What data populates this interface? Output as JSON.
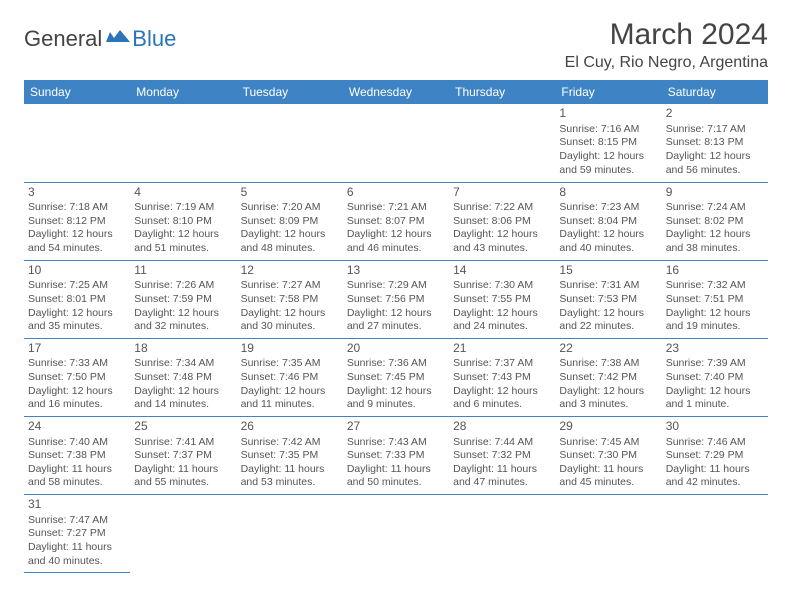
{
  "brand": {
    "part1": "General",
    "part2": "Blue",
    "flag_color": "#2a74b8"
  },
  "title": "March 2024",
  "location": "El Cuy, Rio Negro, Argentina",
  "header_bg": "#3e84c4",
  "day_headers": [
    "Sunday",
    "Monday",
    "Tuesday",
    "Wednesday",
    "Thursday",
    "Friday",
    "Saturday"
  ],
  "weeks": [
    [
      null,
      null,
      null,
      null,
      null,
      {
        "n": "1",
        "sr": "7:16 AM",
        "ss": "8:15 PM",
        "dl": "12 hours and 59 minutes."
      },
      {
        "n": "2",
        "sr": "7:17 AM",
        "ss": "8:13 PM",
        "dl": "12 hours and 56 minutes."
      }
    ],
    [
      {
        "n": "3",
        "sr": "7:18 AM",
        "ss": "8:12 PM",
        "dl": "12 hours and 54 minutes."
      },
      {
        "n": "4",
        "sr": "7:19 AM",
        "ss": "8:10 PM",
        "dl": "12 hours and 51 minutes."
      },
      {
        "n": "5",
        "sr": "7:20 AM",
        "ss": "8:09 PM",
        "dl": "12 hours and 48 minutes."
      },
      {
        "n": "6",
        "sr": "7:21 AM",
        "ss": "8:07 PM",
        "dl": "12 hours and 46 minutes."
      },
      {
        "n": "7",
        "sr": "7:22 AM",
        "ss": "8:06 PM",
        "dl": "12 hours and 43 minutes."
      },
      {
        "n": "8",
        "sr": "7:23 AM",
        "ss": "8:04 PM",
        "dl": "12 hours and 40 minutes."
      },
      {
        "n": "9",
        "sr": "7:24 AM",
        "ss": "8:02 PM",
        "dl": "12 hours and 38 minutes."
      }
    ],
    [
      {
        "n": "10",
        "sr": "7:25 AM",
        "ss": "8:01 PM",
        "dl": "12 hours and 35 minutes."
      },
      {
        "n": "11",
        "sr": "7:26 AM",
        "ss": "7:59 PM",
        "dl": "12 hours and 32 minutes."
      },
      {
        "n": "12",
        "sr": "7:27 AM",
        "ss": "7:58 PM",
        "dl": "12 hours and 30 minutes."
      },
      {
        "n": "13",
        "sr": "7:29 AM",
        "ss": "7:56 PM",
        "dl": "12 hours and 27 minutes."
      },
      {
        "n": "14",
        "sr": "7:30 AM",
        "ss": "7:55 PM",
        "dl": "12 hours and 24 minutes."
      },
      {
        "n": "15",
        "sr": "7:31 AM",
        "ss": "7:53 PM",
        "dl": "12 hours and 22 minutes."
      },
      {
        "n": "16",
        "sr": "7:32 AM",
        "ss": "7:51 PM",
        "dl": "12 hours and 19 minutes."
      }
    ],
    [
      {
        "n": "17",
        "sr": "7:33 AM",
        "ss": "7:50 PM",
        "dl": "12 hours and 16 minutes."
      },
      {
        "n": "18",
        "sr": "7:34 AM",
        "ss": "7:48 PM",
        "dl": "12 hours and 14 minutes."
      },
      {
        "n": "19",
        "sr": "7:35 AM",
        "ss": "7:46 PM",
        "dl": "12 hours and 11 minutes."
      },
      {
        "n": "20",
        "sr": "7:36 AM",
        "ss": "7:45 PM",
        "dl": "12 hours and 9 minutes."
      },
      {
        "n": "21",
        "sr": "7:37 AM",
        "ss": "7:43 PM",
        "dl": "12 hours and 6 minutes."
      },
      {
        "n": "22",
        "sr": "7:38 AM",
        "ss": "7:42 PM",
        "dl": "12 hours and 3 minutes."
      },
      {
        "n": "23",
        "sr": "7:39 AM",
        "ss": "7:40 PM",
        "dl": "12 hours and 1 minute."
      }
    ],
    [
      {
        "n": "24",
        "sr": "7:40 AM",
        "ss": "7:38 PM",
        "dl": "11 hours and 58 minutes."
      },
      {
        "n": "25",
        "sr": "7:41 AM",
        "ss": "7:37 PM",
        "dl": "11 hours and 55 minutes."
      },
      {
        "n": "26",
        "sr": "7:42 AM",
        "ss": "7:35 PM",
        "dl": "11 hours and 53 minutes."
      },
      {
        "n": "27",
        "sr": "7:43 AM",
        "ss": "7:33 PM",
        "dl": "11 hours and 50 minutes."
      },
      {
        "n": "28",
        "sr": "7:44 AM",
        "ss": "7:32 PM",
        "dl": "11 hours and 47 minutes."
      },
      {
        "n": "29",
        "sr": "7:45 AM",
        "ss": "7:30 PM",
        "dl": "11 hours and 45 minutes."
      },
      {
        "n": "30",
        "sr": "7:46 AM",
        "ss": "7:29 PM",
        "dl": "11 hours and 42 minutes."
      }
    ],
    [
      {
        "n": "31",
        "sr": "7:47 AM",
        "ss": "7:27 PM",
        "dl": "11 hours and 40 minutes."
      },
      null,
      null,
      null,
      null,
      null,
      null
    ]
  ],
  "labels": {
    "sunrise": "Sunrise:",
    "sunset": "Sunset:",
    "daylight": "Daylight:"
  }
}
